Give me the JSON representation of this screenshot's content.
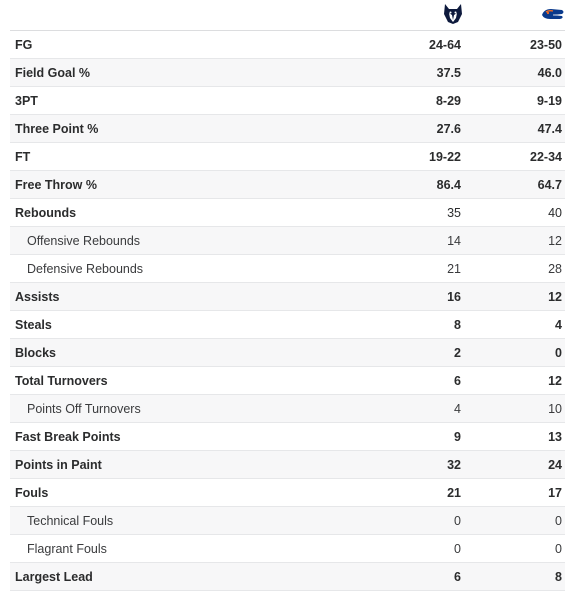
{
  "teams": [
    {
      "icon": "husky-logo-icon",
      "color": "#0e1a3d"
    },
    {
      "icon": "gator-logo-icon",
      "color": "#0a3a8c"
    }
  ],
  "rows": [
    {
      "label": "FG",
      "a": "24-64",
      "b": "23-50",
      "kind": "main"
    },
    {
      "label": "Field Goal %",
      "a": "37.5",
      "b": "46.0",
      "kind": "main"
    },
    {
      "label": "3PT",
      "a": "8-29",
      "b": "9-19",
      "kind": "main"
    },
    {
      "label": "Three Point %",
      "a": "27.6",
      "b": "47.4",
      "kind": "main"
    },
    {
      "label": "FT",
      "a": "19-22",
      "b": "22-34",
      "kind": "main"
    },
    {
      "label": "Free Throw %",
      "a": "86.4",
      "b": "64.7",
      "kind": "main"
    },
    {
      "label": "Rebounds",
      "a": "35",
      "b": "40",
      "kind": "main-plain"
    },
    {
      "label": "Offensive Rebounds",
      "a": "14",
      "b": "12",
      "kind": "sub"
    },
    {
      "label": "Defensive Rebounds",
      "a": "21",
      "b": "28",
      "kind": "sub"
    },
    {
      "label": "Assists",
      "a": "16",
      "b": "12",
      "kind": "main"
    },
    {
      "label": "Steals",
      "a": "8",
      "b": "4",
      "kind": "main"
    },
    {
      "label": "Blocks",
      "a": "2",
      "b": "0",
      "kind": "main"
    },
    {
      "label": "Total Turnovers",
      "a": "6",
      "b": "12",
      "kind": "main"
    },
    {
      "label": "Points Off Turnovers",
      "a": "4",
      "b": "10",
      "kind": "sub"
    },
    {
      "label": "Fast Break Points",
      "a": "9",
      "b": "13",
      "kind": "main"
    },
    {
      "label": "Points in Paint",
      "a": "32",
      "b": "24",
      "kind": "main"
    },
    {
      "label": "Fouls",
      "a": "21",
      "b": "17",
      "kind": "main"
    },
    {
      "label": "Technical Fouls",
      "a": "0",
      "b": "0",
      "kind": "sub"
    },
    {
      "label": "Flagrant Fouls",
      "a": "0",
      "b": "0",
      "kind": "sub"
    },
    {
      "label": "Largest Lead",
      "a": "6",
      "b": "8",
      "kind": "main"
    }
  ]
}
